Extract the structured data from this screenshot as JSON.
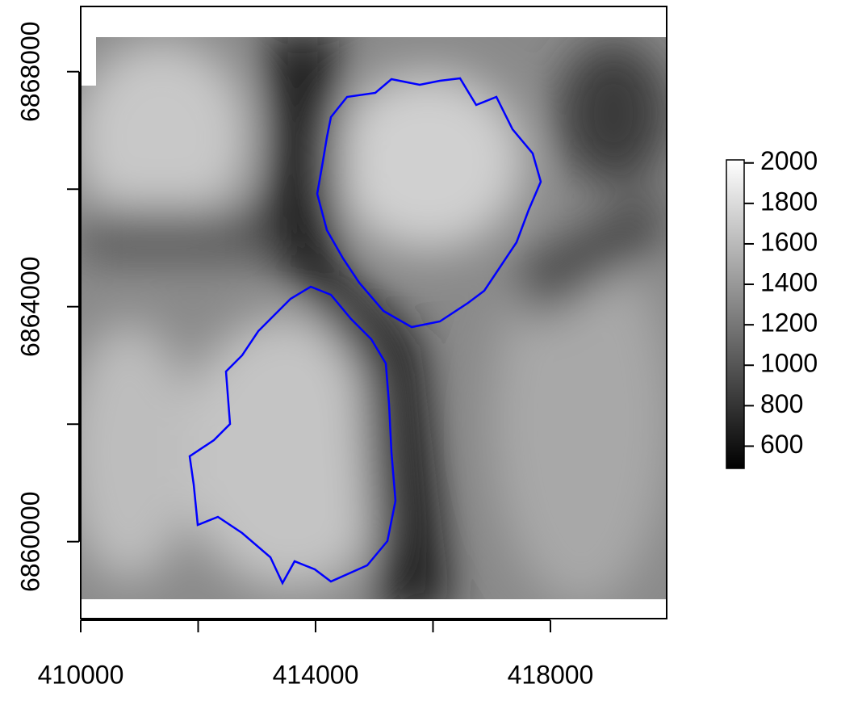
{
  "chart_data": {
    "type": "raster",
    "xlim": [
      410000,
      419980
    ],
    "ylim": [
      6858690,
      6869110
    ],
    "xticks": [
      410000,
      414000,
      418000
    ],
    "xticks_minor": [
      412000,
      416000
    ],
    "yticks": [
      6860000,
      6864000,
      6868000
    ],
    "yticks_minor": [
      6862000,
      6866000
    ],
    "colorbar_lim": [
      490,
      2015
    ],
    "colorbar_ticks": [
      600,
      800,
      1000,
      1200,
      1400,
      1600,
      1800,
      2000
    ],
    "colormap": [
      "#000000",
      "#ffffff"
    ],
    "outline_color": "#0000ff"
  }
}
